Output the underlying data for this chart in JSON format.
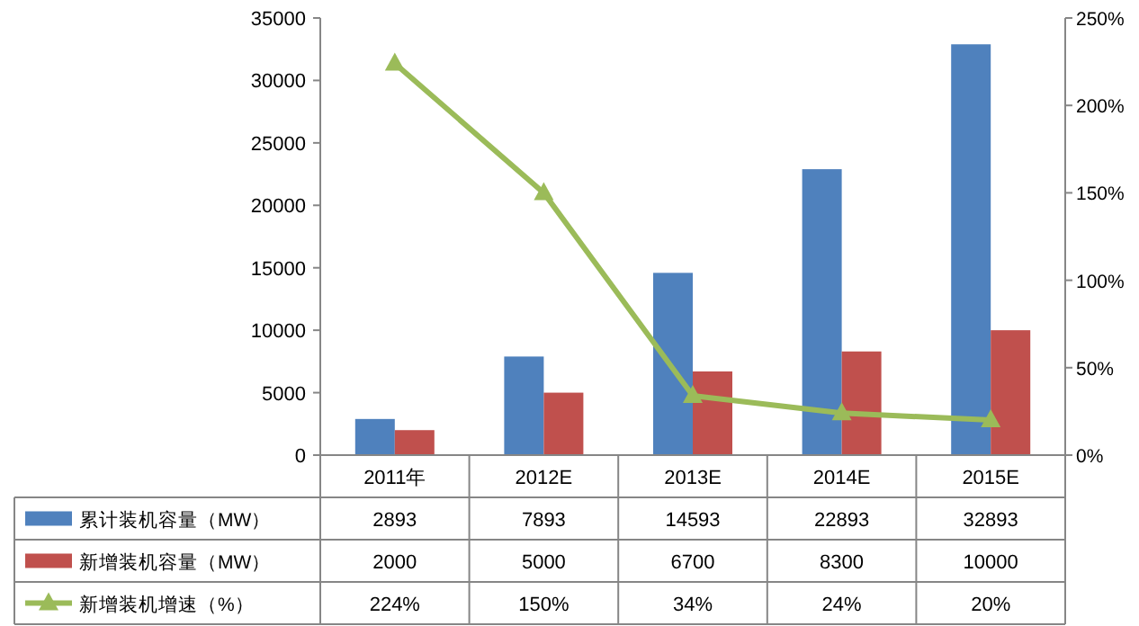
{
  "chart_data": {
    "type": "bar",
    "categories": [
      "2011年",
      "2012E",
      "2013E",
      "2014E",
      "2015E"
    ],
    "series": [
      {
        "name": "累计装机容量（MW）",
        "color": "#4f81bd",
        "values": [
          2893,
          7893,
          14593,
          22893,
          32893
        ],
        "value_labels": [
          "2893",
          "7893",
          "14593",
          "22893",
          "32893"
        ]
      },
      {
        "name": "新增装机容量（MW）",
        "color": "#c0504d",
        "values": [
          2000,
          5000,
          6700,
          8300,
          10000
        ],
        "value_labels": [
          "2000",
          "5000",
          "6700",
          "8300",
          "10000"
        ]
      },
      {
        "name": "新增装机增速（%）",
        "type": "line",
        "axis": "y2",
        "marker": "triangle",
        "color": "#9bbb59",
        "values": [
          224,
          150,
          34,
          24,
          20
        ],
        "value_labels": [
          "224%",
          "150%",
          "34%",
          "24%",
          "20%"
        ]
      }
    ],
    "ylim": [
      0,
      35000
    ],
    "yticks": [
      0,
      5000,
      10000,
      15000,
      20000,
      25000,
      30000,
      35000
    ],
    "y2lim": [
      0,
      250
    ],
    "y2ticks": [
      {
        "value": 0,
        "label": "0%"
      },
      {
        "value": 50,
        "label": "50%"
      },
      {
        "value": 100,
        "label": "100%"
      },
      {
        "value": 150,
        "label": "150%"
      },
      {
        "value": 200,
        "label": "200%"
      },
      {
        "value": 250,
        "label": "250%"
      }
    ],
    "legend": "bottom"
  }
}
